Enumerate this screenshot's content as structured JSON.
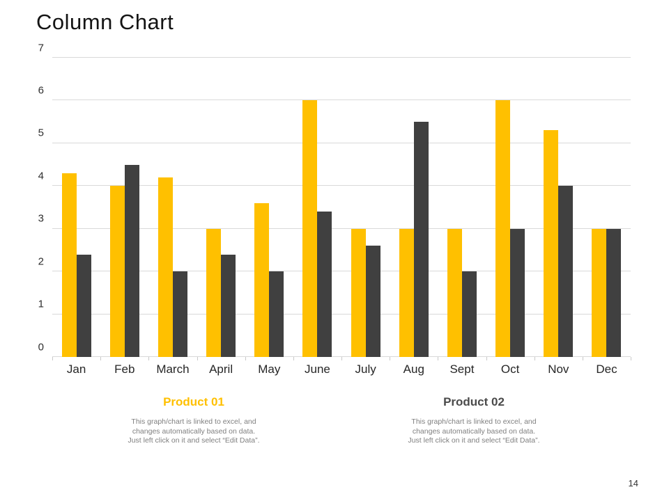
{
  "page": {
    "title": "Column Chart",
    "page_number": "14"
  },
  "chart_data": {
    "type": "bar",
    "title": "Column Chart",
    "categories": [
      "Jan",
      "Feb",
      "March",
      "April",
      "May",
      "June",
      "July",
      "Aug",
      "Sept",
      "Oct",
      "Nov",
      "Dec"
    ],
    "series": [
      {
        "name": "Product 01",
        "color": "#FFC000",
        "values": [
          4.3,
          4.0,
          4.2,
          3.0,
          3.6,
          6.0,
          3.0,
          3.0,
          3.0,
          6.0,
          5.3,
          3.0
        ]
      },
      {
        "name": "Product 02",
        "color": "#404040",
        "values": [
          2.4,
          4.5,
          2.0,
          2.4,
          2.0,
          3.4,
          2.6,
          5.5,
          2.0,
          3.0,
          4.0,
          3.0
        ]
      }
    ],
    "xlabel": "",
    "ylabel": "",
    "ylim": [
      0,
      7
    ],
    "y_ticks": [
      0,
      1,
      2,
      3,
      4,
      5,
      6,
      7
    ],
    "grid": true,
    "gridline_color": "#d9d9d9",
    "legend_position": "bottom"
  },
  "captions": [
    {
      "title": "Product 01",
      "color": "#FFC000",
      "note_lines": [
        "This graph/chart is linked to excel, and",
        "changes automatically based on data.",
        "Just left click on it and select “Edit Data”."
      ]
    },
    {
      "title": "Product 02",
      "color": "#4a4a4a",
      "note_lines": [
        "This graph/chart is linked to excel, and",
        "changes automatically based on data.",
        "Just left click on it and select “Edit Data”."
      ]
    }
  ]
}
